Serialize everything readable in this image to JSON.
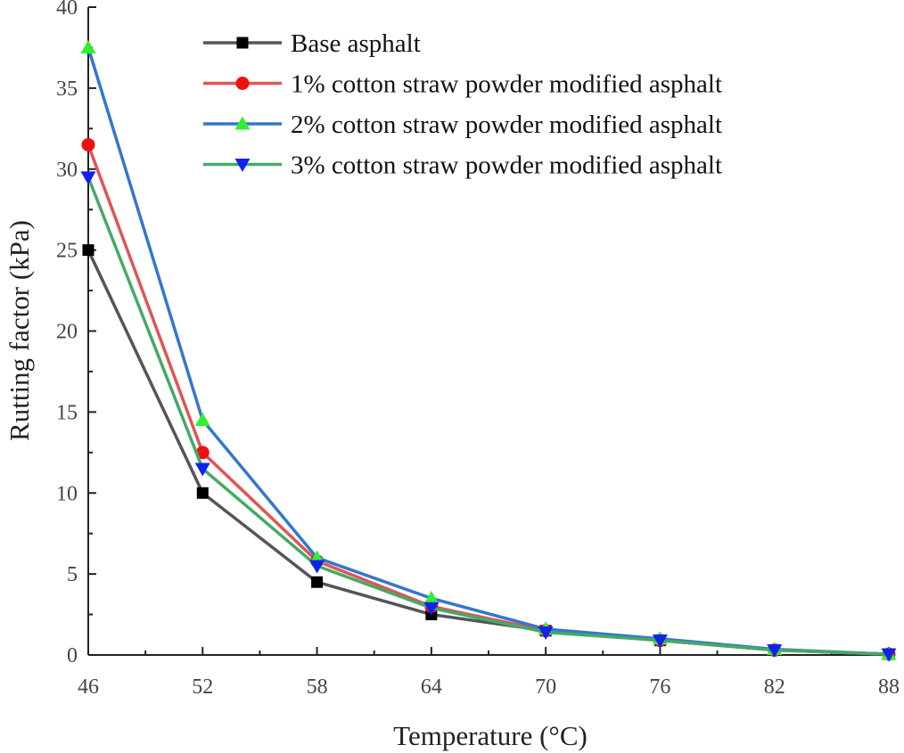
{
  "chart_data": {
    "type": "line",
    "title": "",
    "xlabel": "Temperature (°C)",
    "ylabel": "Rutting factor (kPa)",
    "x": [
      46,
      52,
      58,
      64,
      70,
      76,
      82,
      88
    ],
    "xlim": [
      46,
      88
    ],
    "ylim": [
      0,
      40
    ],
    "xticks": [
      46,
      52,
      58,
      64,
      70,
      76,
      82,
      88
    ],
    "yticks": [
      0,
      5,
      10,
      15,
      20,
      25,
      30,
      35,
      40
    ],
    "grid": false,
    "legend_position": "top-right",
    "series": [
      {
        "name": "Base asphalt",
        "values": [
          25.0,
          10.0,
          4.5,
          2.5,
          1.5,
          0.9,
          0.3,
          0.05
        ],
        "color": "#555555",
        "marker": "square",
        "marker_color": "#000000"
      },
      {
        "name": "1% cotton straw powder modified asphalt",
        "values": [
          31.5,
          12.5,
          5.8,
          3.0,
          1.5,
          0.9,
          0.3,
          0.05
        ],
        "color": "#e05555",
        "marker": "circle",
        "marker_color": "#ee1111"
      },
      {
        "name": "2% cotton straw powder modified asphalt",
        "values": [
          37.5,
          14.5,
          6.0,
          3.5,
          1.6,
          1.0,
          0.35,
          0.05
        ],
        "color": "#3377cc",
        "marker": "triangle-up",
        "marker_color": "#33ee33"
      },
      {
        "name": "3% cotton straw powder modified asphalt",
        "values": [
          29.5,
          11.5,
          5.5,
          2.9,
          1.4,
          0.9,
          0.3,
          0.05
        ],
        "color": "#44aa66",
        "marker": "triangle-down",
        "marker_color": "#1122ee"
      }
    ]
  }
}
